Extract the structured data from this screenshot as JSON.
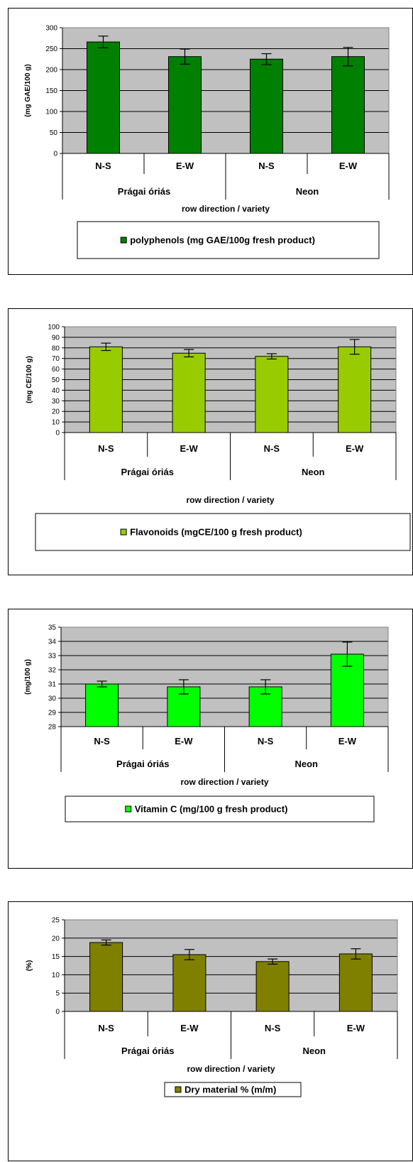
{
  "chart_data": [
    {
      "type": "bar",
      "categories": [
        "N-S",
        "E-W",
        "N-S",
        "E-W"
      ],
      "groups": [
        "Prágai óriás",
        "Neon"
      ],
      "series": [
        {
          "name": "polyphenols (mg GAE/100g fresh product)",
          "values": [
            266,
            231,
            225,
            231
          ],
          "error": [
            14,
            18,
            13,
            22
          ]
        }
      ],
      "color": "#008000",
      "xlabel": "row direction / variety",
      "ylabel": "(mg GAE/100 g)",
      "ylim": [
        0,
        300
      ],
      "yticks": [
        "0",
        "50",
        "100",
        "150",
        "200",
        "250",
        "300"
      ],
      "grid": true,
      "legend": "bottom"
    },
    {
      "type": "bar",
      "categories": [
        "N-S",
        "E-W",
        "N-S",
        "E-W"
      ],
      "groups": [
        "Prágai óriás",
        "Neon"
      ],
      "series": [
        {
          "name": "Flavonoids (mgCE/100 g fresh product)",
          "values": [
            81,
            75,
            72,
            81
          ],
          "error": [
            3.5,
            3.5,
            2.5,
            7
          ]
        }
      ],
      "color": "#99cc00",
      "xlabel": "row direction / variety",
      "ylabel": "(mg CE/100 g)",
      "ylim": [
        0,
        100
      ],
      "yticks": [
        "0",
        "10",
        "20",
        "30",
        "40",
        "50",
        "60",
        "70",
        "80",
        "90",
        "100"
      ],
      "grid": true,
      "legend": "bottom"
    },
    {
      "type": "bar",
      "categories": [
        "N-S",
        "E-W",
        "N-S",
        "E-W"
      ],
      "groups": [
        "Prágai óriás",
        "Neon"
      ],
      "series": [
        {
          "name": "Vitamin C (mg/100 g fresh product)",
          "values": [
            31.0,
            30.8,
            30.8,
            33.1
          ],
          "error": [
            0.2,
            0.5,
            0.5,
            0.85
          ]
        }
      ],
      "color": "#00ff00",
      "xlabel": "row direction / variety",
      "ylabel": "(mg/100 g)",
      "ylim": [
        28,
        35
      ],
      "yticks": [
        "28",
        "29",
        "30",
        "31",
        "32",
        "33",
        "34",
        "35"
      ],
      "grid": true,
      "legend": "bottom"
    },
    {
      "type": "bar",
      "categories": [
        "N-S",
        "E-W",
        "N-S",
        "E-W"
      ],
      "groups": [
        "Prágai óriás",
        "Neon"
      ],
      "series": [
        {
          "name": "Dry material % (m/m)",
          "values": [
            18.8,
            15.5,
            13.6,
            15.7
          ],
          "error": [
            0.7,
            1.4,
            0.7,
            1.4
          ]
        }
      ],
      "color": "#808000",
      "xlabel": "row direction / variety",
      "ylabel": "(%)",
      "ylim": [
        0,
        25
      ],
      "yticks": [
        "0",
        "5",
        "10",
        "15",
        "20",
        "25"
      ],
      "grid": true,
      "legend": "bottom"
    }
  ]
}
